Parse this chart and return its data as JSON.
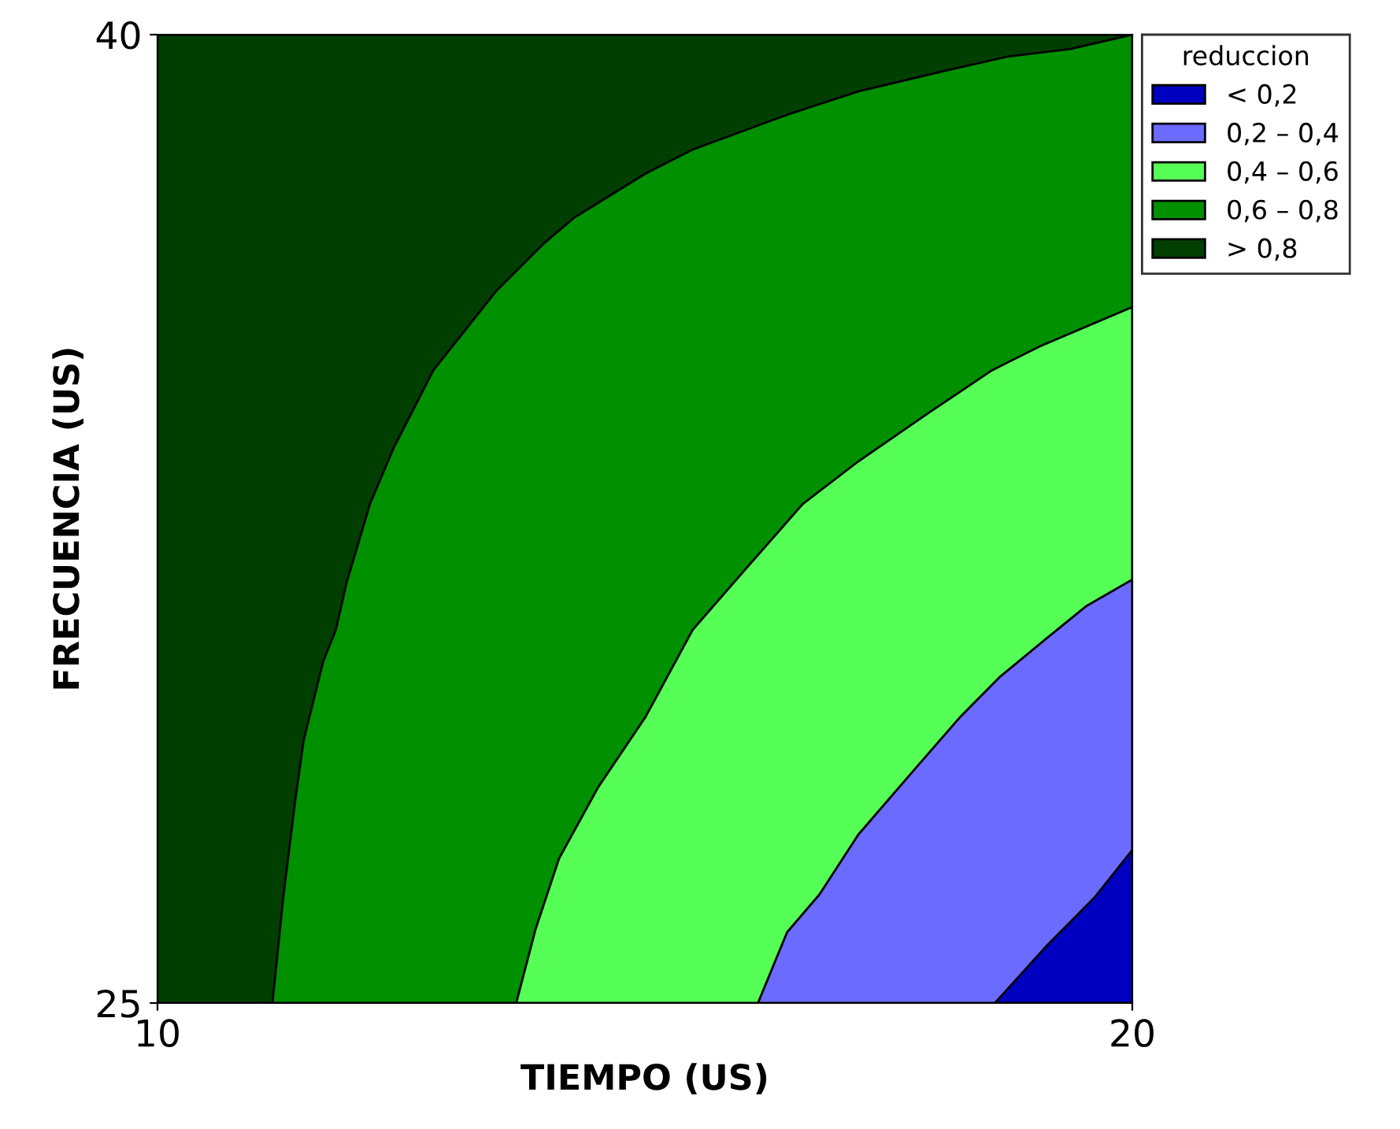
{
  "chart_data": {
    "type": "area",
    "xlabel": "TIEMPO (US)",
    "ylabel": "FRECUENCIA (US)",
    "legend_title": "reduccion",
    "legend": "top right",
    "grid": false,
    "xlim": [
      10,
      20
    ],
    "ylim": [
      25,
      40
    ],
    "xticks": [
      10,
      20
    ],
    "yticks": [
      25,
      40
    ],
    "series": [
      {
        "name": "< 0,2",
        "color": "#0000c0",
        "x": [
          18.59,
          19.13,
          19.61,
          20.0
        ],
        "values": [
          25,
          25.9,
          26.63,
          27.37
        ]
      },
      {
        "name": "0,2 – 0,4",
        "color": "#6b6bff",
        "x": [
          16.16,
          16.46,
          16.79,
          17.19,
          17.75,
          18.24,
          18.64,
          19.13,
          19.53,
          20.0
        ],
        "values": [
          25,
          26.1,
          26.68,
          27.61,
          28.59,
          29.44,
          30.05,
          30.66,
          31.15,
          31.56
        ]
      },
      {
        "name": "0,4 – 0,6",
        "color": "#55ff55",
        "x": [
          13.68,
          13.88,
          14.12,
          14.52,
          15.01,
          15.49,
          15.98,
          16.62,
          17.19,
          17.92,
          18.56,
          19.05,
          20.0
        ],
        "values": [
          25,
          26.15,
          27.24,
          28.34,
          29.44,
          30.78,
          31.63,
          32.73,
          33.39,
          34.15,
          34.8,
          35.17,
          35.78
        ]
      },
      {
        "name": "0,6 – 0,8",
        "color": "#009000",
        "x": [
          11.18,
          11.29,
          11.41,
          11.5,
          11.7,
          11.83,
          11.94,
          12.18,
          12.42,
          12.83,
          13.15,
          13.47,
          13.96,
          14.28,
          15.01,
          15.49,
          16.46,
          17.19,
          18.08,
          18.72,
          19.37,
          20.0
        ],
        "values": [
          25,
          26.63,
          28.1,
          29.07,
          30.29,
          30.78,
          31.51,
          32.73,
          33.59,
          34.8,
          35.41,
          36.02,
          36.76,
          37.17,
          37.85,
          38.22,
          38.76,
          39.12,
          39.44,
          39.66,
          39.78,
          40
        ]
      },
      {
        "name": "> 0,8",
        "color": "#003f00",
        "x": [
          10,
          20
        ],
        "values": [
          40,
          40
        ]
      }
    ]
  }
}
